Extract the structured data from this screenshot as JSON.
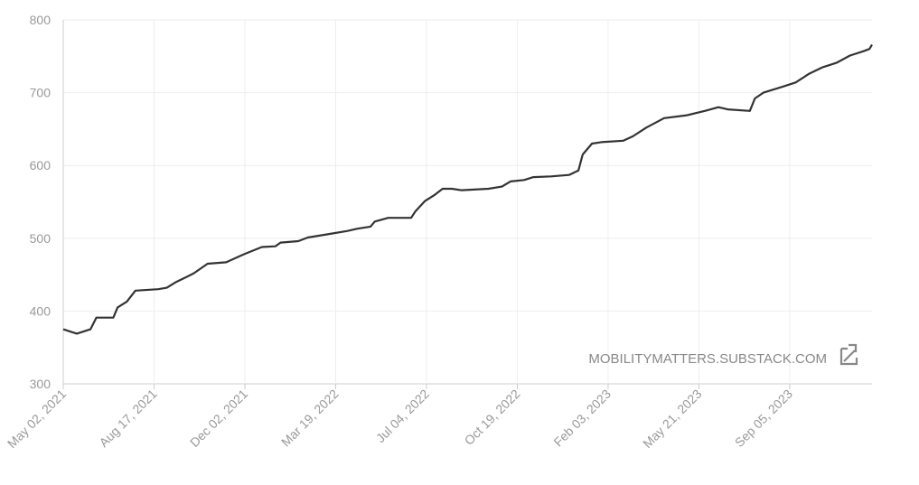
{
  "chart_data": {
    "type": "line",
    "watermark": "MOBILITYMATTERS.SUBSTACK.COM",
    "x": [
      "2021-05-02",
      "2021-05-18",
      "2021-06-03",
      "2021-06-10",
      "2021-06-30",
      "2021-07-05",
      "2021-07-16",
      "2021-07-26",
      "2021-08-22",
      "2021-09-01",
      "2021-09-12",
      "2021-09-23",
      "2021-10-03",
      "2021-10-19",
      "2021-11-10",
      "2021-12-01",
      "2021-12-22",
      "2022-01-07",
      "2022-01-13",
      "2022-02-03",
      "2022-02-14",
      "2022-03-12",
      "2022-04-02",
      "2022-04-13",
      "2022-04-29",
      "2022-05-04",
      "2022-05-20",
      "2022-06-16",
      "2022-06-21",
      "2022-07-02",
      "2022-07-13",
      "2022-07-23",
      "2022-08-03",
      "2022-08-14",
      "2022-09-15",
      "2022-10-01",
      "2022-10-11",
      "2022-10-27",
      "2022-11-07",
      "2022-11-28",
      "2022-12-19",
      "2022-12-30",
      "2023-01-04",
      "2023-01-15",
      "2023-01-26",
      "2023-02-21",
      "2023-03-04",
      "2023-03-20",
      "2023-04-10",
      "2023-05-07",
      "2023-05-28",
      "2023-06-13",
      "2023-06-24",
      "2023-07-20",
      "2023-07-26",
      "2023-08-05",
      "2023-08-27",
      "2023-09-12",
      "2023-09-28",
      "2023-10-14",
      "2023-10-30",
      "2023-11-15",
      "2023-12-01",
      "2023-12-08",
      "2023-12-11"
    ],
    "series": [
      {
        "color": "#333333",
        "values": [
          375,
          369,
          375,
          391,
          391,
          405,
          413,
          428,
          430,
          432,
          440,
          446,
          452,
          465,
          467,
          478,
          488,
          489,
          494,
          496,
          501,
          506,
          510,
          513,
          516,
          523,
          528,
          528,
          537,
          551,
          559,
          568,
          568,
          566,
          568,
          571,
          578,
          580,
          584,
          585,
          587,
          593,
          615,
          630,
          632,
          634,
          640,
          652,
          665,
          669,
          675,
          680,
          677,
          675,
          692,
          700,
          708,
          714,
          726,
          735,
          741,
          751,
          757,
          760,
          766
        ]
      }
    ],
    "xlim": [
      "2021-05-02",
      "2023-12-11"
    ],
    "xticks": [
      {
        "value": "2021-05-02",
        "label": "May 02, 2021"
      },
      {
        "value": "2021-08-17",
        "label": "Aug 17, 2021"
      },
      {
        "value": "2021-12-02",
        "label": "Dec 02, 2021"
      },
      {
        "value": "2022-03-19",
        "label": "Mar 19, 2022"
      },
      {
        "value": "2022-07-04",
        "label": "Jul 04, 2022"
      },
      {
        "value": "2022-10-19",
        "label": "Oct 19, 2022"
      },
      {
        "value": "2023-02-03",
        "label": "Feb 03, 2023"
      },
      {
        "value": "2023-05-21",
        "label": "May 21, 2023"
      },
      {
        "value": "2023-09-05",
        "label": "Sep 05, 2023"
      }
    ],
    "ylim": [
      300,
      800
    ],
    "yticks": [
      300,
      400,
      500,
      600,
      700,
      800
    ],
    "grid": true
  }
}
